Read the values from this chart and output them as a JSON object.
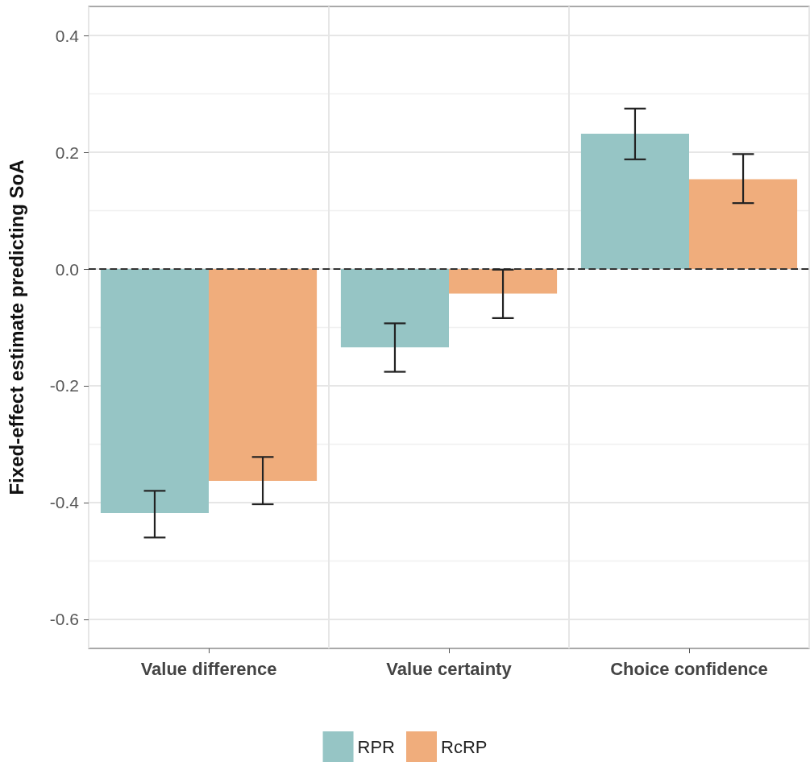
{
  "chart_data": {
    "type": "bar",
    "categories": [
      "Value difference",
      "Value certainty",
      "Choice confidence"
    ],
    "ylabel": "Fixed-effect estimate predicting SoA",
    "series": [
      {
        "name": "RPR",
        "color": "#96c5c5",
        "values": [
          -0.418,
          -0.134,
          0.232
        ],
        "errors": [
          [
            -0.46,
            -0.38
          ],
          [
            -0.176,
            -0.093
          ],
          [
            0.188,
            0.275
          ]
        ]
      },
      {
        "name": "RcRP",
        "color": "#f0ad7c",
        "values": [
          -0.363,
          -0.042,
          0.154
        ],
        "errors": [
          [
            -0.403,
            -0.322
          ],
          [
            -0.084,
            -0.001
          ],
          [
            0.113,
            0.197
          ]
        ]
      }
    ],
    "ylim": [
      -0.65,
      0.45
    ],
    "yticks": [
      {
        "value": -0.6,
        "label": "-0.6"
      },
      {
        "value": -0.4,
        "label": "-0.4"
      },
      {
        "value": -0.2,
        "label": "-0.2"
      },
      {
        "value": 0,
        "label": "0.0"
      },
      0.2,
      0.4
    ],
    "ref_lines": [
      {
        "axis": "y",
        "value": 0,
        "line_style": "dashed",
        "color": "#333333"
      }
    ],
    "grid": true,
    "legend": "bottom"
  }
}
